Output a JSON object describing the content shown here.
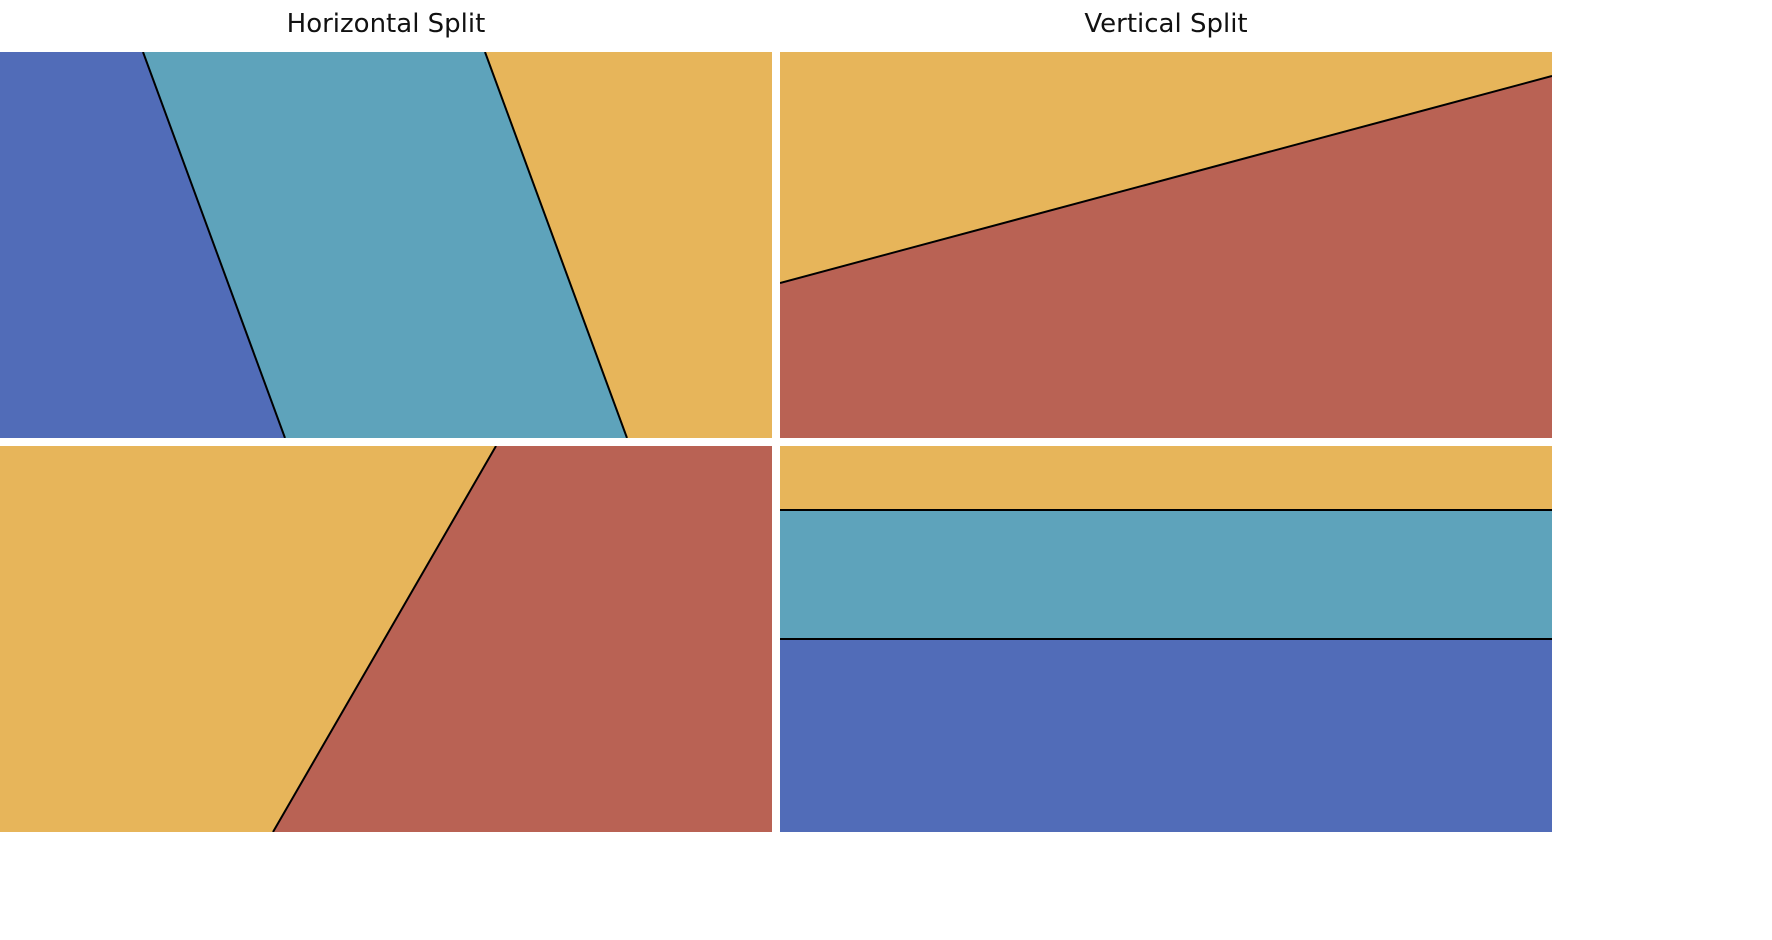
{
  "columns": {
    "left_title": "Horizontal Split",
    "right_title": "Vertical Split"
  },
  "colors": {
    "blue": "#516cb8",
    "teal": "#5ea3bb",
    "gold": "#e7b55a",
    "red": "#b96254",
    "divider": "#000000"
  },
  "panels": [
    {
      "id": "top-left",
      "split": "horizontal",
      "regions": [
        {
          "name": "blue-region",
          "color": "blue"
        },
        {
          "name": "teal-region",
          "color": "teal"
        },
        {
          "name": "gold-region",
          "color": "gold"
        }
      ]
    },
    {
      "id": "top-right",
      "split": "vertical",
      "regions": [
        {
          "name": "gold-region",
          "color": "gold"
        },
        {
          "name": "red-region",
          "color": "red"
        }
      ]
    },
    {
      "id": "bottom-left",
      "split": "horizontal",
      "regions": [
        {
          "name": "gold-region",
          "color": "gold"
        },
        {
          "name": "red-region",
          "color": "red"
        }
      ]
    },
    {
      "id": "bottom-right",
      "split": "vertical",
      "regions": [
        {
          "name": "gold-region",
          "color": "gold"
        },
        {
          "name": "teal-region",
          "color": "teal"
        },
        {
          "name": "blue-region",
          "color": "blue"
        }
      ]
    }
  ]
}
